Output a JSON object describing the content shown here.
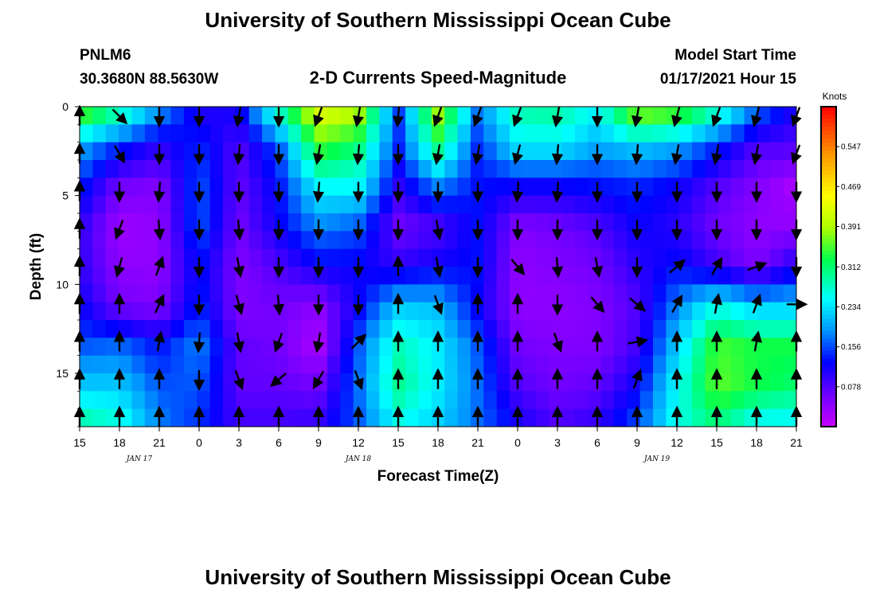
{
  "header": {
    "title_top": "University of Southern Mississippi Ocean Cube",
    "title_bottom": "University of Southern Mississippi Ocean Cube",
    "station_id": "PNLM6",
    "station_coords": "30.3680N 88.5630W",
    "chart_title": "2-D Currents Speed-Magnitude",
    "model_start_label": "Model Start Time",
    "model_start_value": "01/17/2021 Hour 15"
  },
  "chart_data": {
    "type": "heatmap",
    "title": "2-D Currents Speed-Magnitude",
    "xlabel": "Forecast Time(Z)",
    "ylabel": "Depth (ft)",
    "x_ticks": [
      "15",
      "18",
      "21",
      "0",
      "3",
      "6",
      "9",
      "12",
      "15",
      "18",
      "21",
      "0",
      "3",
      "6",
      "9",
      "12",
      "15",
      "18",
      "21"
    ],
    "date_labels": [
      {
        "text": "JAN 17",
        "at_tick": 1.5
      },
      {
        "text": "JAN 18",
        "at_tick": 7
      },
      {
        "text": "JAN 19",
        "at_tick": 14.5
      }
    ],
    "y_ticks": [
      "0",
      "5",
      "10",
      "15"
    ],
    "ylim": [
      0,
      18
    ],
    "colorbar": {
      "unit": "Knots",
      "ticks": [
        "0.547",
        "0.469",
        "0.391",
        "0.312",
        "0.234",
        "0.156",
        "0.078"
      ],
      "range": [
        0,
        0.625
      ]
    },
    "n_time": 19,
    "n_depth": 9,
    "speed_grid_knots": [
      [
        0.39,
        0.2,
        0.14,
        0.1,
        0.1,
        0.12,
        0.16,
        0.22,
        0.3
      ],
      [
        0.31,
        0.14,
        0.06,
        0.03,
        0.04,
        0.06,
        0.17,
        0.22,
        0.27
      ],
      [
        0.2,
        0.1,
        0.05,
        0.04,
        0.04,
        0.05,
        0.13,
        0.16,
        0.18
      ],
      [
        0.1,
        0.14,
        0.16,
        0.16,
        0.13,
        0.14,
        0.18,
        0.16,
        0.14
      ],
      [
        0.12,
        0.08,
        0.07,
        0.06,
        0.05,
        0.05,
        0.07,
        0.07,
        0.09
      ],
      [
        0.3,
        0.16,
        0.13,
        0.12,
        0.08,
        0.06,
        0.06,
        0.07,
        0.09
      ],
      [
        0.44,
        0.35,
        0.25,
        0.18,
        0.12,
        0.04,
        0.02,
        0.06,
        0.1
      ],
      [
        0.41,
        0.31,
        0.25,
        0.16,
        0.12,
        0.12,
        0.16,
        0.17,
        0.16
      ],
      [
        0.15,
        0.14,
        0.1,
        0.06,
        0.1,
        0.22,
        0.28,
        0.3,
        0.25
      ],
      [
        0.4,
        0.31,
        0.18,
        0.08,
        0.12,
        0.21,
        0.24,
        0.24,
        0.22
      ],
      [
        0.18,
        0.14,
        0.13,
        0.13,
        0.13,
        0.12,
        0.16,
        0.17,
        0.17
      ],
      [
        0.29,
        0.24,
        0.12,
        0.05,
        0.04,
        0.04,
        0.06,
        0.08,
        0.12
      ],
      [
        0.3,
        0.24,
        0.12,
        0.06,
        0.05,
        0.04,
        0.05,
        0.06,
        0.08
      ],
      [
        0.25,
        0.2,
        0.13,
        0.08,
        0.06,
        0.05,
        0.05,
        0.07,
        0.1
      ],
      [
        0.4,
        0.22,
        0.14,
        0.12,
        0.1,
        0.08,
        0.09,
        0.12,
        0.16
      ],
      [
        0.38,
        0.2,
        0.12,
        0.1,
        0.13,
        0.18,
        0.22,
        0.25,
        0.26
      ],
      [
        0.3,
        0.14,
        0.08,
        0.06,
        0.09,
        0.26,
        0.35,
        0.36,
        0.3
      ],
      [
        0.18,
        0.08,
        0.05,
        0.04,
        0.05,
        0.22,
        0.33,
        0.33,
        0.24
      ],
      [
        0.11,
        0.08,
        0.02,
        0.04,
        0.11,
        0.22,
        0.33,
        0.31,
        0.24
      ]
    ],
    "vector_direction_deg": [
      [
        0,
        0,
        0,
        0,
        0,
        0,
        0,
        0,
        0
      ],
      [
        135,
        150,
        180,
        200,
        195,
        0,
        0,
        0,
        0
      ],
      [
        180,
        180,
        185,
        175,
        20,
        25,
        10,
        0,
        0
      ],
      [
        180,
        180,
        180,
        180,
        180,
        180,
        185,
        180,
        0
      ],
      [
        190,
        185,
        180,
        175,
        170,
        165,
        170,
        160,
        0
      ],
      [
        180,
        180,
        180,
        180,
        180,
        175,
        200,
        230,
        0
      ],
      [
        200,
        190,
        185,
        180,
        180,
        180,
        190,
        210,
        0
      ],
      [
        190,
        185,
        180,
        180,
        180,
        180,
        45,
        160,
        0
      ],
      [
        185,
        180,
        180,
        180,
        0,
        0,
        0,
        0,
        0
      ],
      [
        200,
        190,
        180,
        170,
        170,
        160,
        0,
        0,
        0
      ],
      [
        200,
        190,
        180,
        180,
        180,
        0,
        0,
        0,
        0
      ],
      [
        200,
        195,
        185,
        180,
        140,
        0,
        0,
        0,
        0
      ],
      [
        190,
        185,
        185,
        180,
        175,
        180,
        160,
        0,
        0
      ],
      [
        180,
        180,
        180,
        180,
        170,
        140,
        0,
        0,
        0
      ],
      [
        190,
        185,
        180,
        180,
        180,
        130,
        80,
        20,
        0
      ],
      [
        195,
        190,
        180,
        180,
        50,
        30,
        0,
        0,
        0
      ],
      [
        200,
        190,
        180,
        180,
        30,
        10,
        0,
        0,
        0
      ],
      [
        195,
        190,
        180,
        180,
        70,
        20,
        10,
        0,
        0
      ],
      [
        200,
        200,
        180,
        180,
        180,
        90,
        0,
        0,
        0
      ]
    ]
  }
}
